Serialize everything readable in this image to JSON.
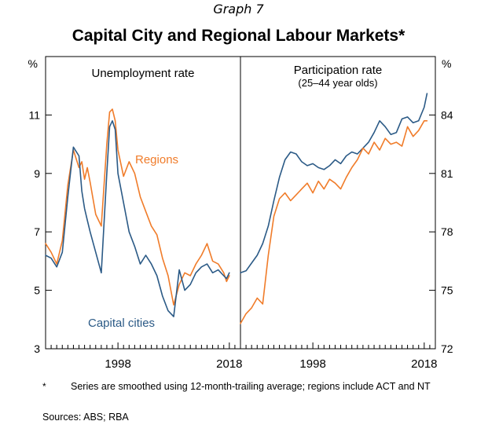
{
  "header": {
    "graph_number": "Graph 7",
    "title": "Capital City and Regional Labour Markets*"
  },
  "footer": {
    "note_marker": "*",
    "note": "Series are smoothed using 12-month-trailing average; regions include ACT and NT",
    "sources": "Sources:  ABS; RBA"
  },
  "colors": {
    "capital_cities": "#2b5a86",
    "regions": "#f07c2a",
    "axis": "#000000"
  },
  "chart_data": [
    {
      "type": "line",
      "title": "Unemployment rate",
      "subtitle": "",
      "y_unit": "%",
      "ylim": [
        3,
        13
      ],
      "yticks": [
        3,
        5,
        7,
        9,
        11
      ],
      "xlim": [
        1985,
        2020
      ],
      "xticks": [
        1998,
        2018
      ],
      "series": [
        {
          "name": "Regions",
          "color": "#f07c2a",
          "x": [
            1985,
            1986,
            1987,
            1988,
            1989,
            1990,
            1991,
            1991.5,
            1992,
            1992.5,
            1993,
            1994,
            1995,
            1996,
            1996.5,
            1997,
            1997.5,
            1998,
            1999,
            2000,
            2001,
            2002,
            2003,
            2004,
            2005,
            2006,
            2007,
            2008,
            2009,
            2010,
            2011,
            2012,
            2013,
            2014,
            2015,
            2016,
            2017,
            2017.5,
            2018
          ],
          "values": [
            6.6,
            6.3,
            5.9,
            6.7,
            8.6,
            9.8,
            9.2,
            9.4,
            8.8,
            9.2,
            8.7,
            7.6,
            7.2,
            10.0,
            11.1,
            11.2,
            10.8,
            9.8,
            8.9,
            9.4,
            9.0,
            8.2,
            7.7,
            7.2,
            6.9,
            6.1,
            5.5,
            4.5,
            5.2,
            5.6,
            5.5,
            5.9,
            6.2,
            6.6,
            6.0,
            5.9,
            5.6,
            5.3,
            5.5
          ]
        },
        {
          "name": "Capital cities",
          "color": "#2b5a86",
          "x": [
            1985,
            1986,
            1987,
            1988,
            1989,
            1990,
            1991,
            1991.5,
            1992,
            1992.5,
            1993,
            1994,
            1995,
            1996,
            1996.5,
            1997,
            1997.5,
            1998,
            1999,
            2000,
            2001,
            2002,
            2003,
            2004,
            2005,
            2006,
            2007,
            2008,
            2009,
            2010,
            2011,
            2012,
            2013,
            2014,
            2015,
            2016,
            2017,
            2017.5,
            2018
          ],
          "values": [
            6.2,
            6.1,
            5.8,
            6.3,
            8.2,
            9.9,
            9.6,
            8.4,
            7.8,
            7.4,
            7.0,
            6.3,
            5.6,
            9.0,
            10.6,
            10.8,
            10.5,
            9.0,
            8.0,
            7.0,
            6.5,
            5.9,
            6.2,
            5.9,
            5.5,
            4.8,
            4.3,
            4.1,
            5.7,
            5.0,
            5.2,
            5.6,
            5.8,
            5.9,
            5.6,
            5.7,
            5.5,
            5.4,
            5.6
          ]
        }
      ],
      "labels": [
        {
          "text": "Regions",
          "series": "Regions"
        },
        {
          "text": "Capital cities",
          "series": "Capital cities"
        }
      ]
    },
    {
      "type": "line",
      "title": "Participation rate",
      "subtitle": "(25–44 year olds)",
      "y_unit": "%",
      "ylim": [
        72,
        87
      ],
      "yticks": [
        72,
        75,
        78,
        81,
        84
      ],
      "xlim": [
        1985,
        2020
      ],
      "xticks": [
        1998,
        2018
      ],
      "series": [
        {
          "name": "Capital cities",
          "color": "#2b5a86",
          "x": [
            1985,
            1986,
            1987,
            1988,
            1989,
            1990,
            1991,
            1992,
            1993,
            1994,
            1995,
            1996,
            1997,
            1998,
            1999,
            2000,
            2001,
            2002,
            2003,
            2004,
            2005,
            2006,
            2007,
            2008,
            2009,
            2010,
            2011,
            2012,
            2013,
            2014,
            2015,
            2016,
            2017,
            2018,
            2018.5
          ],
          "values": [
            75.9,
            76.0,
            76.4,
            76.8,
            77.4,
            78.3,
            79.6,
            80.8,
            81.7,
            82.1,
            82.0,
            81.6,
            81.4,
            81.5,
            81.3,
            81.2,
            81.4,
            81.7,
            81.5,
            81.9,
            82.1,
            82.0,
            82.3,
            82.6,
            83.1,
            83.7,
            83.4,
            83.0,
            83.1,
            83.8,
            83.9,
            83.6,
            83.7,
            84.4,
            85.1
          ]
        },
        {
          "name": "Regions",
          "color": "#f07c2a",
          "x": [
            1985,
            1986,
            1987,
            1988,
            1989,
            1990,
            1991,
            1992,
            1993,
            1994,
            1995,
            1996,
            1997,
            1998,
            1999,
            2000,
            2001,
            2002,
            2003,
            2004,
            2005,
            2006,
            2007,
            2008,
            2009,
            2010,
            2011,
            2012,
            2013,
            2014,
            2015,
            2016,
            2017,
            2018,
            2018.5
          ],
          "values": [
            73.3,
            73.8,
            74.1,
            74.6,
            74.3,
            76.8,
            78.8,
            79.7,
            80.0,
            79.6,
            79.9,
            80.2,
            80.5,
            80.0,
            80.6,
            80.2,
            80.7,
            80.5,
            80.2,
            80.8,
            81.3,
            81.7,
            82.3,
            82.0,
            82.6,
            82.2,
            82.8,
            82.5,
            82.6,
            82.4,
            83.4,
            82.9,
            83.2,
            83.7,
            83.7
          ]
        }
      ]
    }
  ]
}
